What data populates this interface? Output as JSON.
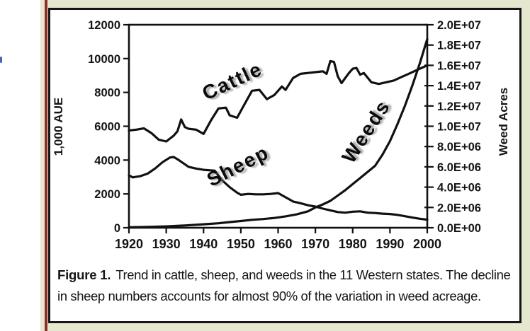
{
  "page": {
    "background_color": "#ffffff",
    "panel_color": "#e5e7cf",
    "red_rule_color": "#8d2f28",
    "figure_border_color": "#161616",
    "stray_mark_color": "#4a5fc0"
  },
  "caption": {
    "prefix": "Figure 1.",
    "line1": "Trend in cattle, sheep, and weeds in the 11 Western states. The decline",
    "line2": "in sheep numbers accounts for almost 90% of the variation in weed acreage."
  },
  "chart_data": {
    "type": "line",
    "title": "",
    "grid": false,
    "legend": "rotated-inline-labels",
    "line_color": "#111111",
    "x_axis": {
      "label": "",
      "range": [
        1920,
        2000
      ],
      "ticks": [
        {
          "v": 1920,
          "label": "1920"
        },
        {
          "v": 1930,
          "label": "1930"
        },
        {
          "v": 1940,
          "label": "1940"
        },
        {
          "v": 1950,
          "label": "1950"
        },
        {
          "v": 1960,
          "label": "1960"
        },
        {
          "v": 1970,
          "label": "1970"
        },
        {
          "v": 1980,
          "label": "1980"
        },
        {
          "v": 1990,
          "label": "1990"
        },
        {
          "v": 2000,
          "label": "2000"
        }
      ]
    },
    "y_left_axis": {
      "label": "1,000 AUE",
      "range": [
        0,
        12000
      ],
      "ticks": [
        {
          "v": 0,
          "label": "0"
        },
        {
          "v": 2000,
          "label": "2000"
        },
        {
          "v": 4000,
          "label": "4000"
        },
        {
          "v": 6000,
          "label": "6000"
        },
        {
          "v": 8000,
          "label": "8000"
        },
        {
          "v": 10000,
          "label": "10000"
        },
        {
          "v": 12000,
          "label": "12000"
        }
      ]
    },
    "y_right_axis": {
      "label": "Weed Acres",
      "range": [
        0,
        20000000
      ],
      "ticks": [
        {
          "v": 0,
          "label": "0.0E+00"
        },
        {
          "v": 2000000,
          "label": "2.0E+06"
        },
        {
          "v": 4000000,
          "label": "4.0E+06"
        },
        {
          "v": 6000000,
          "label": "6.0E+06"
        },
        {
          "v": 8000000,
          "label": "8.0E+06"
        },
        {
          "v": 10000000,
          "label": "1.0E+07"
        },
        {
          "v": 12000000,
          "label": "1.2E+07"
        },
        {
          "v": 14000000,
          "label": "1.4E+07"
        },
        {
          "v": 16000000,
          "label": "1.6E+07"
        },
        {
          "v": 18000000,
          "label": "1.8E+07"
        },
        {
          "v": 20000000,
          "label": "2.0E+07"
        }
      ]
    },
    "series": [
      {
        "name": "Cattle",
        "axis": "left",
        "points": [
          [
            1920,
            5750
          ],
          [
            1922,
            5800
          ],
          [
            1924,
            5875
          ],
          [
            1926,
            5600
          ],
          [
            1928,
            5200
          ],
          [
            1930,
            5100
          ],
          [
            1932,
            5450
          ],
          [
            1933,
            5700
          ],
          [
            1934,
            6400
          ],
          [
            1935,
            5950
          ],
          [
            1936,
            5850
          ],
          [
            1938,
            5800
          ],
          [
            1940,
            5550
          ],
          [
            1942,
            6350
          ],
          [
            1944,
            7050
          ],
          [
            1946,
            7100
          ],
          [
            1947,
            6650
          ],
          [
            1949,
            6500
          ],
          [
            1951,
            7300
          ],
          [
            1953,
            8100
          ],
          [
            1955,
            8150
          ],
          [
            1957,
            7600
          ],
          [
            1959,
            7850
          ],
          [
            1961,
            8350
          ],
          [
            1962,
            8150
          ],
          [
            1964,
            8850
          ],
          [
            1966,
            9100
          ],
          [
            1968,
            9150
          ],
          [
            1970,
            9200
          ],
          [
            1972,
            9250
          ],
          [
            1973,
            9100
          ],
          [
            1974,
            9850
          ],
          [
            1975,
            9800
          ],
          [
            1976,
            8950
          ],
          [
            1977,
            8550
          ],
          [
            1979,
            9150
          ],
          [
            1980,
            9400
          ],
          [
            1981,
            9450
          ],
          [
            1982,
            9050
          ],
          [
            1983,
            9150
          ],
          [
            1985,
            8600
          ],
          [
            1987,
            8500
          ],
          [
            1989,
            8600
          ],
          [
            1991,
            8700
          ],
          [
            1993,
            8900
          ],
          [
            1995,
            9100
          ],
          [
            1997,
            9300
          ],
          [
            1999,
            9500
          ],
          [
            2000,
            9600
          ]
        ]
      },
      {
        "name": "Sheep",
        "axis": "left",
        "points": [
          [
            1920,
            3100
          ],
          [
            1921,
            2975
          ],
          [
            1923,
            3050
          ],
          [
            1925,
            3200
          ],
          [
            1927,
            3500
          ],
          [
            1929,
            3875
          ],
          [
            1931,
            4150
          ],
          [
            1932,
            4180
          ],
          [
            1933,
            4050
          ],
          [
            1934,
            3900
          ],
          [
            1936,
            3600
          ],
          [
            1938,
            3500
          ],
          [
            1940,
            3425
          ],
          [
            1943,
            3375
          ],
          [
            1945,
            2800
          ],
          [
            1947,
            2400
          ],
          [
            1949,
            2075
          ],
          [
            1950,
            1950
          ],
          [
            1952,
            2000
          ],
          [
            1954,
            1975
          ],
          [
            1956,
            1975
          ],
          [
            1958,
            2000
          ],
          [
            1960,
            2050
          ],
          [
            1962,
            1800
          ],
          [
            1964,
            1550
          ],
          [
            1966,
            1450
          ],
          [
            1968,
            1330
          ],
          [
            1970,
            1250
          ],
          [
            1972,
            1130
          ],
          [
            1974,
            1030
          ],
          [
            1976,
            930
          ],
          [
            1978,
            890
          ],
          [
            1980,
            950
          ],
          [
            1982,
            970
          ],
          [
            1984,
            890
          ],
          [
            1986,
            870
          ],
          [
            1988,
            830
          ],
          [
            1990,
            810
          ],
          [
            1992,
            760
          ],
          [
            1994,
            680
          ],
          [
            1996,
            600
          ],
          [
            1998,
            530
          ],
          [
            2000,
            475
          ]
        ]
      },
      {
        "name": "Weeds",
        "axis": "right",
        "points": [
          [
            1920,
            50000
          ],
          [
            1925,
            80000
          ],
          [
            1930,
            130000
          ],
          [
            1935,
            220000
          ],
          [
            1940,
            340000
          ],
          [
            1944,
            440000
          ],
          [
            1947,
            560000
          ],
          [
            1950,
            660000
          ],
          [
            1953,
            780000
          ],
          [
            1956,
            860000
          ],
          [
            1959,
            960000
          ],
          [
            1962,
            1120000
          ],
          [
            1965,
            1320000
          ],
          [
            1968,
            1620000
          ],
          [
            1970,
            2000000
          ],
          [
            1972,
            2300000
          ],
          [
            1974,
            2650000
          ],
          [
            1976,
            3170000
          ],
          [
            1978,
            3700000
          ],
          [
            1980,
            4300000
          ],
          [
            1982,
            4900000
          ],
          [
            1984,
            5500000
          ],
          [
            1986,
            6100000
          ],
          [
            1988,
            7200000
          ],
          [
            1990,
            8540000
          ],
          [
            1992,
            10200000
          ],
          [
            1994,
            12000000
          ],
          [
            1996,
            14000000
          ],
          [
            1998,
            16200000
          ],
          [
            2000,
            18600000
          ]
        ]
      }
    ]
  }
}
